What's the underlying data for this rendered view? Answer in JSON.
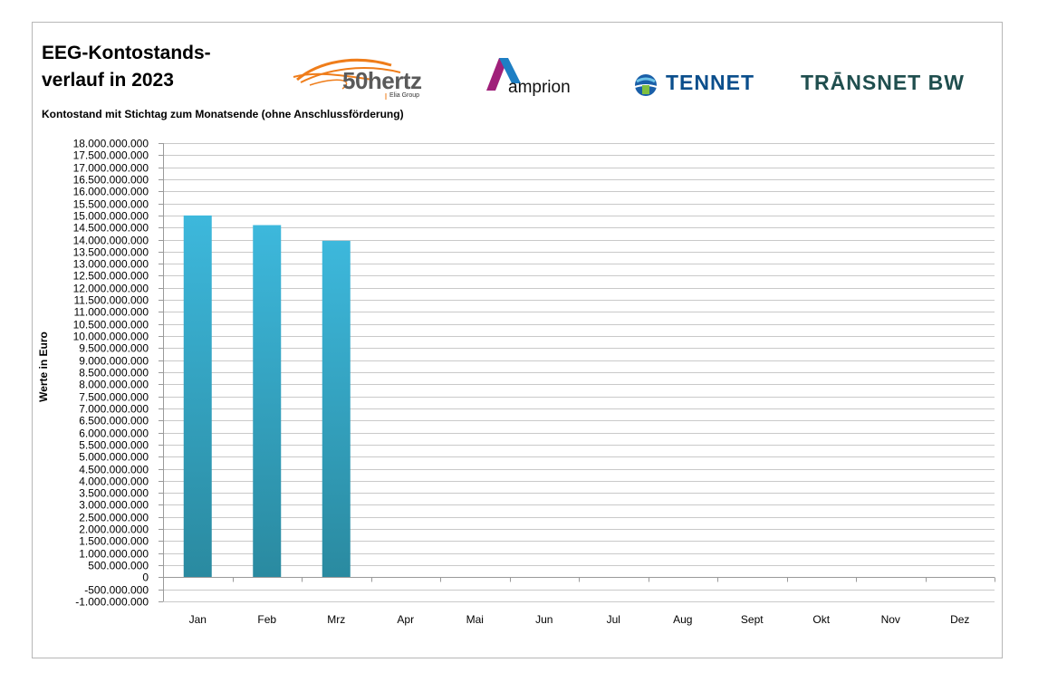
{
  "header": {
    "title": "EEG-Kontostands-\nverlauf in 2023",
    "subtitle": "Kontostand mit Stichtag zum Monatsende (ohne Anschlussförderung)"
  },
  "logos": {
    "hertz": {
      "name": "50hertz",
      "tagline": "Elia Group",
      "icon": "50hertz-swirl-logo-icon"
    },
    "amprion": {
      "name": "amprion",
      "icon": "amprion-a-logo-icon"
    },
    "tennet": {
      "name": "TenneT",
      "display": "TENNET",
      "icon": "tennet-globe-logo-icon"
    },
    "transnet": {
      "name": "TRANSNET BW",
      "display": "TRĀNSNET BW"
    }
  },
  "colors": {
    "bar_top": "#3db8dc",
    "bar_bottom": "#2a8aa0",
    "grid": "#c9c9c9",
    "axis": "#9a9a9a",
    "hertz_orange": "#ef7d1a",
    "amprion_purple": "#a0207a",
    "amprion_blue": "#1e7fc4"
  },
  "chart_data": {
    "type": "bar",
    "title": "EEG-Kontostands-verlauf in 2023",
    "subtitle": "Kontostand mit Stichtag zum Monatsende (ohne Anschlussförderung)",
    "xlabel": "",
    "ylabel": "Werte in Euro",
    "categories": [
      "Jan",
      "Feb",
      "Mrz",
      "Apr",
      "Mai",
      "Jun",
      "Jul",
      "Aug",
      "Sept",
      "Okt",
      "Nov",
      "Dez"
    ],
    "values": [
      15000000000,
      14600000000,
      13950000000,
      null,
      null,
      null,
      null,
      null,
      null,
      null,
      null,
      null
    ],
    "ylim": [
      -1000000000,
      18000000000
    ],
    "ytick_step": 500000000,
    "yticks": [
      "18.000.000.000",
      "17.500.000.000",
      "17.000.000.000",
      "16.500.000.000",
      "16.000.000.000",
      "15.500.000.000",
      "15.000.000.000",
      "14.500.000.000",
      "14.000.000.000",
      "13.500.000.000",
      "13.000.000.000",
      "12.500.000.000",
      "12.000.000.000",
      "11.500.000.000",
      "11.000.000.000",
      "10.500.000.000",
      "10.000.000.000",
      "9.500.000.000",
      "9.000.000.000",
      "8.500.000.000",
      "8.000.000.000",
      "7.500.000.000",
      "7.000.000.000",
      "6.500.000.000",
      "6.000.000.000",
      "5.500.000.000",
      "5.000.000.000",
      "4.500.000.000",
      "4.000.000.000",
      "3.500.000.000",
      "3.000.000.000",
      "2.500.000.000",
      "2.000.000.000",
      "1.500.000.000",
      "1.000.000.000",
      "500.000.000",
      "0",
      "-500.000.000",
      "-1.000.000.000"
    ],
    "grid": true,
    "legend": "none"
  }
}
